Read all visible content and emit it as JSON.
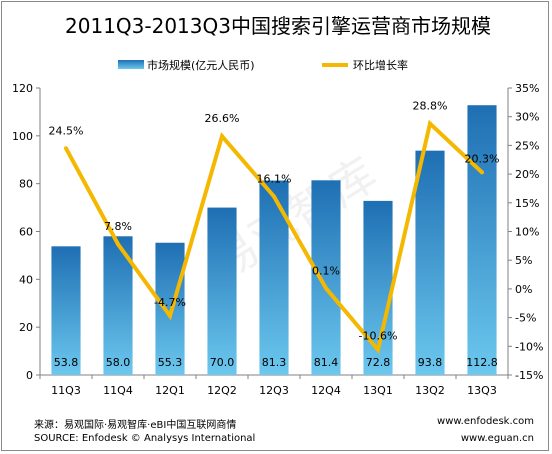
{
  "chart_data": {
    "type": "bar",
    "title": "2011Q3-2013Q3中国搜索引擎运营商市场规模",
    "categories": [
      "11Q3",
      "11Q4",
      "12Q1",
      "12Q2",
      "12Q3",
      "12Q4",
      "13Q1",
      "13Q2",
      "13Q3"
    ],
    "series": [
      {
        "name": "市场规模(亿元人民币)",
        "type": "bar",
        "axis": "left",
        "values": [
          53.8,
          58.0,
          55.3,
          70.0,
          81.3,
          81.4,
          72.8,
          93.8,
          112.8
        ],
        "labels": [
          "53.8",
          "58.0",
          "55.3",
          "70.0",
          "81.3",
          "81.4",
          "72.8",
          "93.8",
          "112.8"
        ]
      },
      {
        "name": "环比增长率",
        "type": "line",
        "axis": "right",
        "values": [
          24.5,
          7.8,
          -4.7,
          26.6,
          16.1,
          0.1,
          -10.6,
          28.8,
          20.3
        ],
        "labels": [
          "24.5%",
          "7.8%",
          "-4.7%",
          "26.6%",
          "16.1%",
          "0.1%",
          "-10.6%",
          "28.8%",
          "20.3%"
        ]
      }
    ],
    "y_left": {
      "range": [
        0,
        120
      ],
      "ticks": [
        0,
        20,
        40,
        60,
        80,
        100,
        120
      ],
      "tick_labels": [
        "0",
        "20",
        "40",
        "60",
        "80",
        "100",
        "120"
      ]
    },
    "y_right": {
      "range": [
        -15,
        35
      ],
      "ticks": [
        -15,
        -10,
        -5,
        0,
        5,
        10,
        15,
        20,
        25,
        30,
        35
      ],
      "tick_labels": [
        "-15%",
        "-10%",
        "-5%",
        "0%",
        "5%",
        "10%",
        "15%",
        "20%",
        "25%",
        "30%",
        "35%"
      ]
    },
    "grid": false,
    "legend_position": "top",
    "colors": {
      "bar_top": "#1e6fb3",
      "bar_bottom": "#6cc8ee",
      "line": "#f5b800"
    }
  },
  "watermark": "易观智库",
  "footer": {
    "source_cn": "来源：易观国际·易观智库·eBI中国互联网商情",
    "source_en": "SOURCE: Enfodesk © Analysys International",
    "url_1": "www.enfodesk.com",
    "url_2": "www.eguan.cn"
  }
}
